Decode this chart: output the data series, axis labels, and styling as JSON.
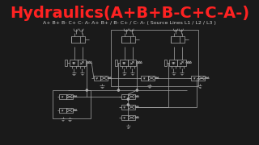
{
  "bg_color": "#1a1a1a",
  "title": "Hydraulics(A+B+B-C+C-A-)",
  "title_color": "#ff2222",
  "title_fontsize": 14,
  "title_fontweight": "bold",
  "subtitle": "A+ B+ B- C+ C- A- A+ B+ / B- C+ / C- A- ( Source Lines L1 / L2 / L3 )",
  "subtitle_color": "#cccccc",
  "subtitle_fontsize": 4.5,
  "diagram_color": "#aaaaaa",
  "line_color": "#999999",
  "lw": 0.5
}
